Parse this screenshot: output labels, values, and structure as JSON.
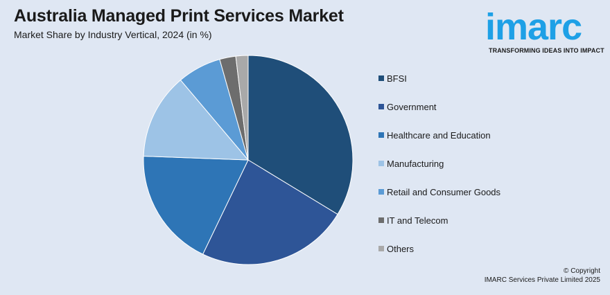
{
  "header": {
    "title": "Australia Managed Print Services Market",
    "subtitle": "Market Share by Industry Vertical, 2024 (in %)"
  },
  "logo": {
    "word": "imarc",
    "tagline": "TRANSFORMING IDEAS INTO IMPACT",
    "color": "#1ea0e6"
  },
  "chart_data": {
    "type": "pie",
    "title": "Australia Managed Print Services Market",
    "subtitle": "Market Share by Industry Vertical, 2024 (in %)",
    "legend_position": "right",
    "categories": [
      "BFSI",
      "Government",
      "Healthcare and Education",
      "Manufacturing",
      "Retail and Consumer Goods",
      "IT and Telecom",
      "Others"
    ],
    "values": [
      33.8,
      23.5,
      18.5,
      13.3,
      6.8,
      2.5,
      1.9
    ],
    "colors": [
      "#1f4e79",
      "#2e5597",
      "#2e75b6",
      "#9dc3e6",
      "#5b9bd5",
      "#6d6d6d",
      "#a9a9a9"
    ]
  },
  "footer": {
    "copyright_line1": "© Copyright",
    "copyright_line2": "IMARC Services Private Limited 2025"
  }
}
